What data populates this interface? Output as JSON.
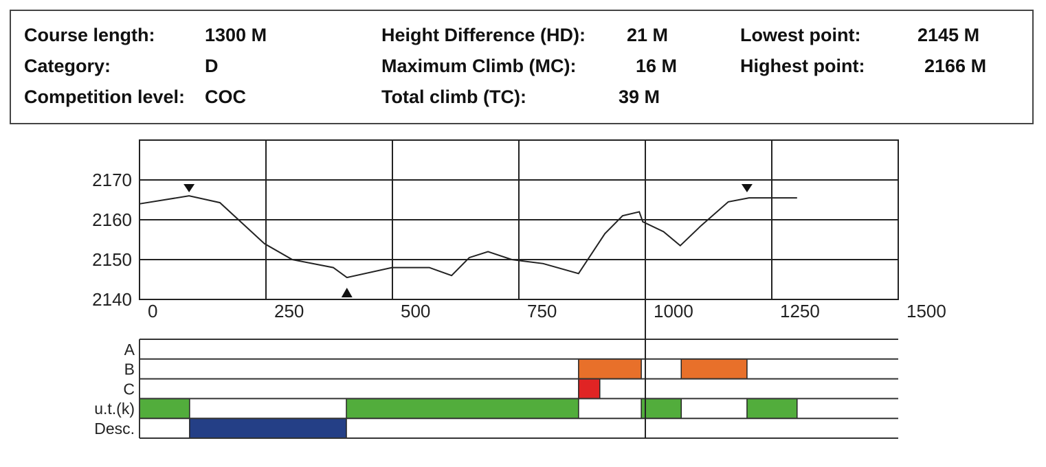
{
  "info": {
    "course_length_label": "Course length:",
    "course_length_value": "1300 M",
    "category_label": "Category:",
    "category_value": "D",
    "competition_level_label": "Competition level:",
    "competition_level_value": "COC",
    "hd_label": "Height Difference (HD):",
    "hd_value": "21 M",
    "mc_label": "Maximum Climb (MC):",
    "mc_value": "16 M",
    "tc_label": "Total climb (TC):",
    "tc_value": "39 M",
    "lowest_label": "Lowest point:",
    "lowest_value": "2145 M",
    "highest_label": "Highest point:",
    "highest_value": "2166 M"
  },
  "chart_data": [
    {
      "type": "line",
      "xlim": [
        0,
        1500
      ],
      "ylim": [
        2140,
        2180
      ],
      "grid": true,
      "x_ticks": [
        "0",
        "250",
        "500",
        "750",
        "1000",
        "1250",
        "1500"
      ],
      "x_tick_values": [
        0,
        250,
        500,
        750,
        1000,
        1250,
        1500
      ],
      "y_ticks": [
        "2140",
        "2150",
        "2160",
        "2170"
      ],
      "y_tick_values": [
        2140,
        2150,
        2160,
        2170
      ],
      "series": [
        {
          "x": [
            0,
            98,
            159,
            247,
            302,
            383,
            410,
            499,
            573,
            617,
            652,
            689,
            736,
            798,
            868,
            920,
            955,
            988,
            995,
            1036,
            1069,
            1110,
            1164,
            1205,
            1300
          ],
          "y": [
            2164,
            2166,
            2164.3,
            2154,
            2150,
            2148,
            2145.5,
            2148,
            2148,
            2146,
            2150.5,
            2152,
            2150,
            2149,
            2146.5,
            2156.5,
            2161,
            2162,
            2159.5,
            2157,
            2153.5,
            2158.5,
            2164.5,
            2165.5,
            2165.5
          ]
        }
      ],
      "markers": [
        {
          "type": "high",
          "x": 98,
          "y": 2166
        },
        {
          "type": "high",
          "x": 1201,
          "y": 2166
        },
        {
          "type": "low",
          "x": 410,
          "y": 2145
        }
      ],
      "vertical_line_x": 1000
    },
    {
      "type": "bar",
      "orientation": "horizontal-segments",
      "rows": [
        {
          "label": "A",
          "color": "#ffffff",
          "segments": []
        },
        {
          "label": "B",
          "color": "#e8702a",
          "segments": [
            [
              868,
              992
            ],
            [
              1071,
              1201
            ]
          ]
        },
        {
          "label": "C",
          "color": "#e02424",
          "segments": [
            [
              868,
              910
            ]
          ]
        },
        {
          "label": "u.t.(k)",
          "color": "#52ad3c",
          "segments": [
            [
              0,
              99
            ],
            [
              409,
              868
            ],
            [
              992,
              1071
            ],
            [
              1201,
              1300
            ]
          ]
        },
        {
          "label": "Desc.",
          "color": "#243f86",
          "segments": [
            [
              99,
              409
            ]
          ]
        }
      ],
      "xlim": [
        0,
        1500
      ]
    }
  ]
}
